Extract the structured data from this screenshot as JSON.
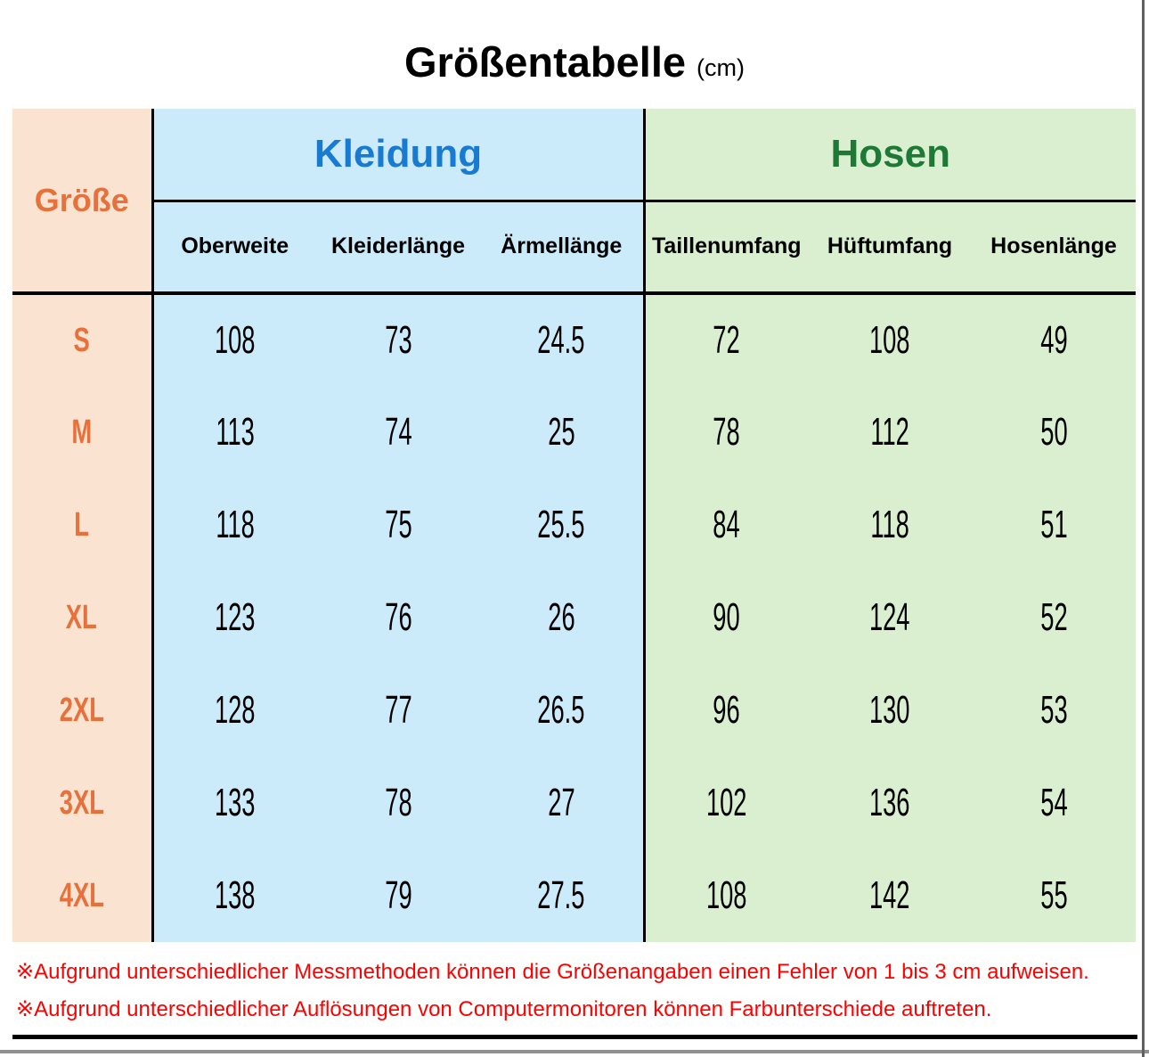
{
  "title": {
    "main": "Größentabelle",
    "unit": "(cm)"
  },
  "colors": {
    "size_column_bg": "#fbe3d2",
    "kleidung_bg": "#cbeafa",
    "hosen_bg": "#d9efd0",
    "size_text": "#e7713b",
    "kleidung_text": "#187bd1",
    "hosen_text": "#1d7935",
    "note_text": "#ff0000",
    "rule_black": "#000000",
    "rule_gray": "#8f8f8f"
  },
  "table": {
    "size_header": "Größe",
    "groups": [
      {
        "label": "Kleidung",
        "columns": [
          "Oberweite",
          "Kleiderlänge",
          "Ärmellänge"
        ]
      },
      {
        "label": "Hosen",
        "columns": [
          "Taillenumfang",
          "Hüftumfang",
          "Hosenlänge"
        ]
      }
    ],
    "rows": [
      {
        "size": "S",
        "values": [
          "108",
          "73",
          "24.5",
          "72",
          "108",
          "49"
        ]
      },
      {
        "size": "M",
        "values": [
          "113",
          "74",
          "25",
          "78",
          "112",
          "50"
        ]
      },
      {
        "size": "L",
        "values": [
          "118",
          "75",
          "25.5",
          "84",
          "118",
          "51"
        ]
      },
      {
        "size": "XL",
        "values": [
          "123",
          "76",
          "26",
          "90",
          "124",
          "52"
        ]
      },
      {
        "size": "2XL",
        "values": [
          "128",
          "77",
          "26.5",
          "96",
          "130",
          "53"
        ]
      },
      {
        "size": "3XL",
        "values": [
          "133",
          "78",
          "27",
          "102",
          "136",
          "54"
        ]
      },
      {
        "size": "4XL",
        "values": [
          "138",
          "79",
          "27.5",
          "108",
          "142",
          "55"
        ]
      }
    ]
  },
  "notes": [
    "※Aufgrund unterschiedlicher Messmethoden können die Größenangaben einen Fehler von 1 bis 3 cm aufweisen.",
    "※Aufgrund unterschiedlicher Auflösungen von Computermonitoren können Farbunterschiede auftreten."
  ],
  "chart_data": {
    "type": "table",
    "title": "Größentabelle (cm)",
    "columns": [
      "Größe",
      "Kleidung - Oberweite",
      "Kleidung - Kleiderlänge",
      "Kleidung - Ärmellänge",
      "Hosen - Taillenumfang",
      "Hosen - Hüftumfang",
      "Hosen - Hosenlänge"
    ],
    "rows": [
      [
        "S",
        108,
        73,
        24.5,
        72,
        108,
        49
      ],
      [
        "M",
        113,
        74,
        25,
        78,
        112,
        50
      ],
      [
        "L",
        118,
        75,
        25.5,
        84,
        118,
        51
      ],
      [
        "XL",
        123,
        76,
        26,
        90,
        124,
        52
      ],
      [
        "2XL",
        128,
        77,
        26.5,
        96,
        130,
        53
      ],
      [
        "3XL",
        133,
        78,
        27,
        102,
        136,
        54
      ],
      [
        "4XL",
        138,
        79,
        27.5,
        108,
        142,
        55
      ]
    ]
  }
}
